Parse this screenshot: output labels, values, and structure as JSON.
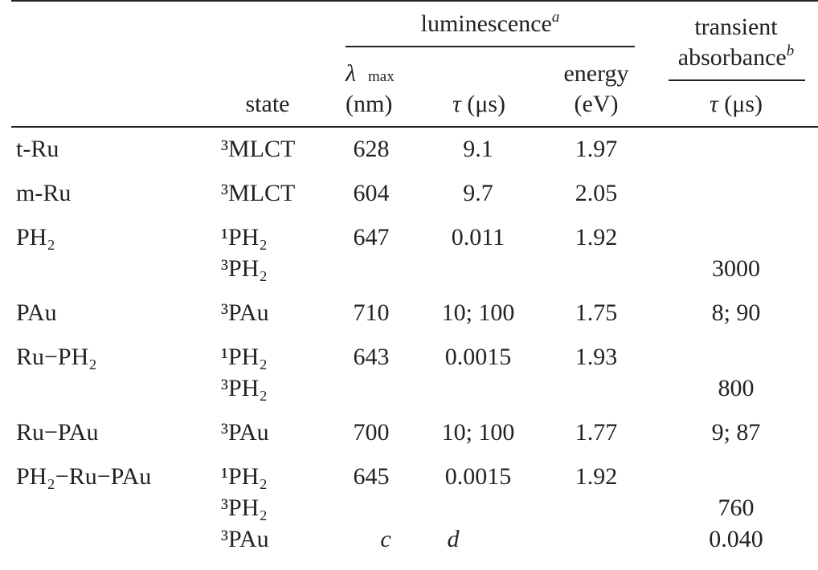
{
  "header": {
    "state": "state",
    "luminescence": {
      "text": "luminescence",
      "footnote": "a"
    },
    "lambda_max": {
      "symbol": "λ",
      "sub": "max",
      "unit": "(nm)"
    },
    "lum_tau": {
      "symbol": "τ",
      "unit": "(μs)"
    },
    "energy": {
      "text": "energy",
      "unit": "(eV)"
    },
    "transient": {
      "line1": "transient",
      "line2": "absorbance",
      "footnote": "b"
    },
    "trans_tau": {
      "symbol": "τ",
      "unit": "(μs)"
    }
  },
  "rows": [
    {
      "compound": "t-Ru",
      "states": [
        {
          "state": "³MLCT",
          "lambda_max": "628",
          "tau": "9.1",
          "energy": "1.97"
        }
      ]
    },
    {
      "compound": "m-Ru",
      "states": [
        {
          "state": "³MLCT",
          "lambda_max": "604",
          "tau": "9.7",
          "energy": "2.05"
        }
      ]
    },
    {
      "compound": "PH₂",
      "states": [
        {
          "state": "¹PH₂",
          "lambda_max": "647",
          "tau": "0.011",
          "energy": "1.92"
        },
        {
          "state": "³PH₂",
          "transient_tau": "3000"
        }
      ]
    },
    {
      "compound": "PAu",
      "states": [
        {
          "state": "³PAu",
          "lambda_max": "710",
          "tau": "10; 100",
          "energy": "1.75",
          "transient_tau": "8; 90"
        }
      ]
    },
    {
      "compound": "Ru−PH₂",
      "states": [
        {
          "state": "¹PH₂",
          "lambda_max": "643",
          "tau": "0.0015",
          "energy": "1.93"
        },
        {
          "state": "³PH₂",
          "transient_tau": "800"
        }
      ]
    },
    {
      "compound": "Ru−PAu",
      "states": [
        {
          "state": "³PAu",
          "lambda_max": "700",
          "tau": "10; 100",
          "energy": "1.77",
          "transient_tau": "9; 87"
        }
      ]
    },
    {
      "compound": "PH₂−Ru−PAu",
      "states": [
        {
          "state": "¹PH₂",
          "lambda_max": "645",
          "tau": "0.0015",
          "energy": "1.92"
        },
        {
          "state": "³PH₂",
          "transient_tau": "760"
        },
        {
          "state": "³PAu",
          "lambda_max_note": "c",
          "tau_note": "d",
          "transient_tau": "0.040"
        }
      ]
    }
  ]
}
